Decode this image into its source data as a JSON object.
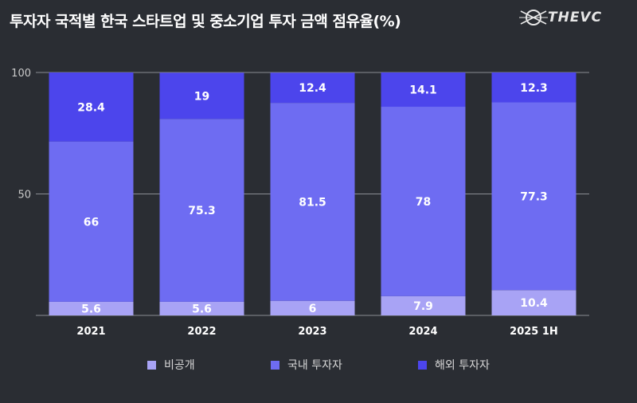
{
  "title": "투자자 국적별 한국 스타트업 및 중소기업 투자 금액 점유율(%)",
  "logo": {
    "text": "THEVC",
    "icon": "thevc-logo-icon"
  },
  "colors": {
    "background": "#2a2d33",
    "private": "#a8a3f5",
    "domestic": "#6e6cf2",
    "foreign": "#4c45ec",
    "grid": "#8a8d93",
    "label": "#ffffff",
    "axis_text": "#c9c9c9"
  },
  "chart_data": {
    "type": "bar",
    "stacked": true,
    "title": "투자자 국적별 한국 스타트업 및 중소기업 투자 금액 점유율(%)",
    "xlabel": "",
    "ylabel": "",
    "ylim": [
      0,
      100
    ],
    "yticks": [
      50,
      100
    ],
    "grid": true,
    "legend_position": "bottom",
    "categories": [
      "2021",
      "2022",
      "2023",
      "2024",
      "2025 1H"
    ],
    "series": [
      {
        "name": "비공개",
        "color": "#a8a3f5",
        "values": [
          5.6,
          5.6,
          6,
          7.9,
          10.4
        ],
        "labels": [
          "5.6",
          "5.6",
          "6",
          "7.9",
          "10.4"
        ]
      },
      {
        "name": "국내 투자자",
        "color": "#6e6cf2",
        "values": [
          66,
          75.3,
          81.5,
          78,
          77.3
        ],
        "labels": [
          "66",
          "75.3",
          "81.5",
          "78",
          "77.3"
        ]
      },
      {
        "name": "해외 투자자",
        "color": "#4c45ec",
        "values": [
          28.4,
          19,
          12.4,
          14.1,
          12.3
        ],
        "labels": [
          "28.4",
          "19",
          "12.4",
          "14.1",
          "12.3"
        ]
      }
    ]
  }
}
